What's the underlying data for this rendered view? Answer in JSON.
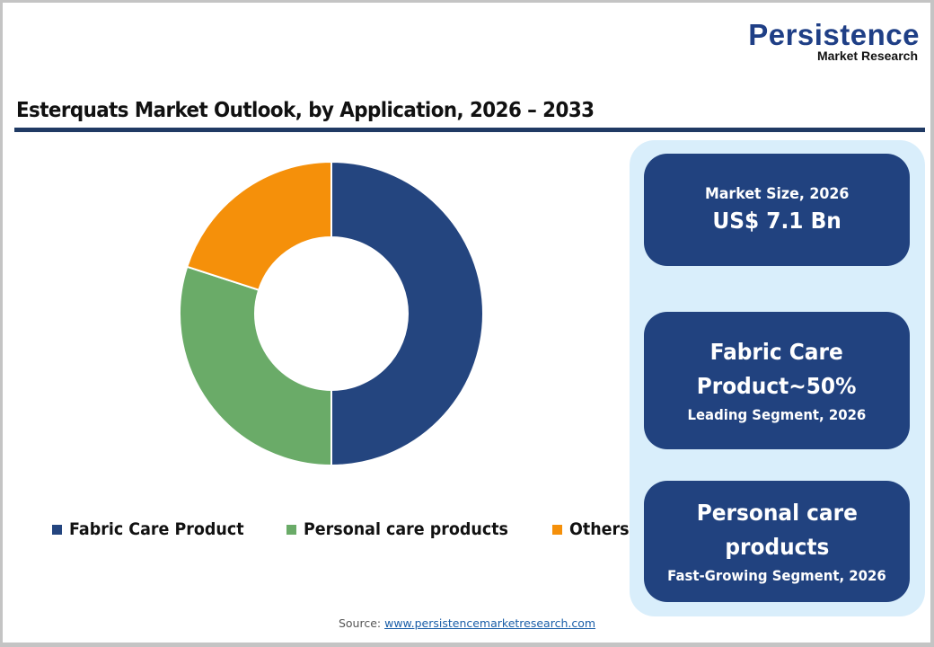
{
  "logo": {
    "main": "Persistence",
    "sub": "Market Research"
  },
  "title": "Esterquats Market Outlook, by Application, 2026 – 2033",
  "colors": {
    "fabric_care": "#24457f",
    "personal_care": "#6aab68",
    "others": "#f5900a",
    "title_rule": "#203a64",
    "panel_bg": "#d9eefb",
    "card_bg": "#21427f"
  },
  "legend": [
    {
      "label": "Fabric Care Product",
      "color": "#24457f"
    },
    {
      "label": "Personal care products",
      "color": "#6aab68"
    },
    {
      "label": "Others",
      "color": "#f5900a"
    }
  ],
  "cards": {
    "market_size": {
      "label": "Market Size, 2026",
      "value": "US$ 7.1 Bn"
    },
    "leading": {
      "line1": "Fabric Care",
      "line2": "Product~50%",
      "sub": "Leading Segment, 2026"
    },
    "fast_growing": {
      "line1": "Personal care",
      "line2": "products",
      "sub": "Fast-Growing Segment, 2026"
    }
  },
  "source": {
    "label": "Source:",
    "link": "www.persistencemarketresearch.com"
  },
  "chart_data": {
    "type": "pie",
    "subtype": "donut",
    "title": "Esterquats Market Outlook, by Application, 2026 – 2033",
    "categories": [
      "Fabric Care Product",
      "Personal care products",
      "Others"
    ],
    "values": [
      50,
      30,
      20
    ],
    "unit": "%",
    "colors": [
      "#24457f",
      "#6aab68",
      "#f5900a"
    ],
    "start_angle": "12 o'clock, clockwise",
    "legend_position": "bottom",
    "annotations": [
      "Market Size, 2026: US$ 7.1 Bn",
      "Fabric Care Product~50% Leading Segment, 2026",
      "Personal care products Fast-Growing Segment, 2026"
    ]
  }
}
